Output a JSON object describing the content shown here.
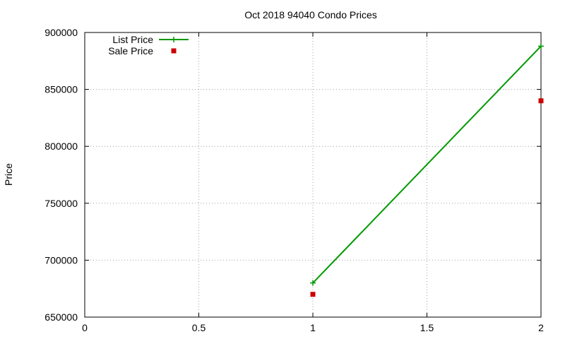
{
  "chart_data": {
    "type": "line",
    "title": "Oct 2018 94040 Condo Prices",
    "xlabel": "",
    "ylabel": "Price",
    "xlim": [
      0,
      2
    ],
    "ylim": [
      650000,
      900000
    ],
    "x_ticks": [
      0,
      0.5,
      1,
      1.5,
      2
    ],
    "x_tick_labels": [
      "0",
      "0.5",
      "1",
      "1.5",
      "2"
    ],
    "y_ticks": [
      650000,
      700000,
      750000,
      800000,
      850000,
      900000
    ],
    "y_tick_labels": [
      "650000",
      "700000",
      "750000",
      "800000",
      "850000",
      "900000"
    ],
    "grid": true,
    "legend_position": "top-left",
    "series": [
      {
        "name": "List Price",
        "style": "line-with-plus-markers",
        "color": "#009900",
        "points": [
          {
            "x": 1,
            "y": 680000
          },
          {
            "x": 2,
            "y": 888000
          }
        ]
      },
      {
        "name": "Sale Price",
        "style": "square-markers",
        "color": "#cc0000",
        "points": [
          {
            "x": 1,
            "y": 670000
          },
          {
            "x": 2,
            "y": 840000
          }
        ]
      }
    ]
  }
}
